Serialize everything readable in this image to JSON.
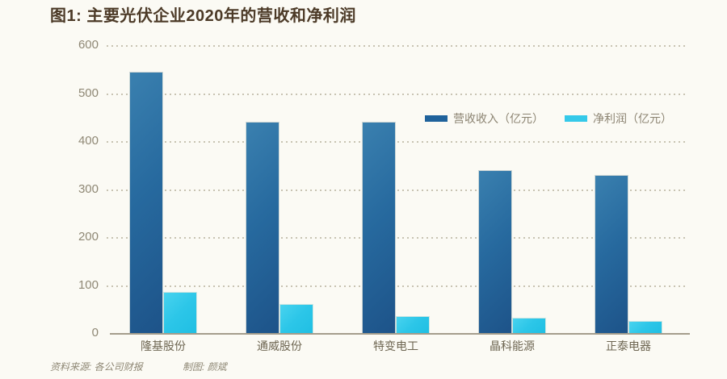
{
  "page": {
    "title": "图1: 主要光伏企业2020年的营收和净利润"
  },
  "footer": {
    "source": "资料来源: 各公司财报",
    "credit": "制图: 颜斌"
  },
  "colors": {
    "background": "#fbfaf4",
    "title_text": "#4c3a27",
    "axis_label_text": "#8f8875",
    "category_label_text": "#6e6652",
    "legend_text": "#8c8472",
    "gridline": "#bfb9a7",
    "baseline": "#a49d8c",
    "revenue_bar": "#23659c",
    "revenue_bar_gradient": [
      "#3a80af",
      "#1d5389"
    ],
    "profit_bar": "#2cc6e8",
    "profit_bar_gradient": [
      "#48d3ef",
      "#20bfe3"
    ]
  },
  "chart_data": {
    "type": "bar",
    "title": "图1: 主要光伏企业2020年的营收和净利润",
    "categories": [
      "隆基股份",
      "通威股份",
      "特变电工",
      "晶科能源",
      "正泰电器"
    ],
    "series": [
      {
        "name": "营收收入（亿元）",
        "color": "#23659c",
        "values": [
          545,
          440,
          440,
          340,
          330
        ]
      },
      {
        "name": "净利润（亿元）",
        "color": "#2cc6e8",
        "values": [
          85,
          60,
          36,
          32,
          25
        ]
      }
    ],
    "xlabel": "",
    "ylabel": "",
    "ylim": [
      0,
      600
    ],
    "yticks": [
      0,
      100,
      200,
      300,
      400,
      500,
      600
    ],
    "grid": "horizontal-dotted",
    "legend_position": "top-center",
    "source_note": "资料来源: 各公司财报",
    "credit_note": "制图: 颜斌"
  }
}
